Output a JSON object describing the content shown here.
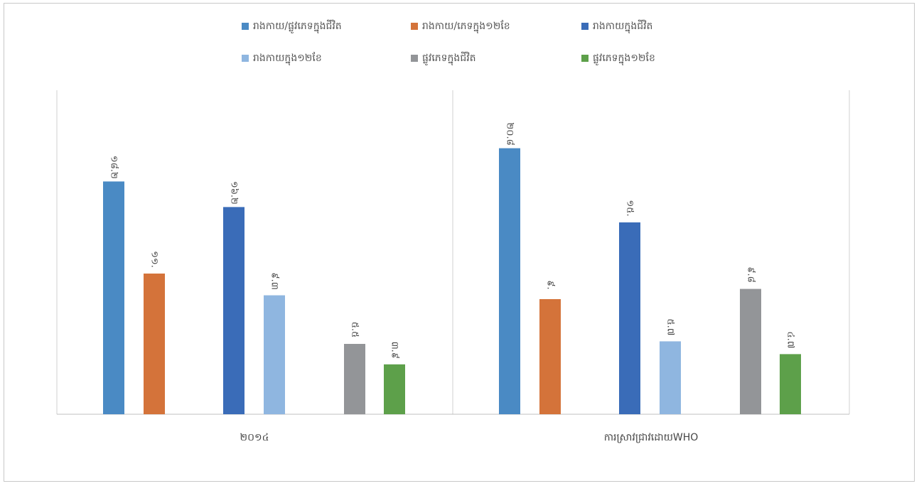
{
  "chart_data": {
    "type": "bar",
    "categories": [
      "២០១៤",
      "ការស្រាវជ្រាវដោយWHO"
    ],
    "series": [
      {
        "name": "រាងកាយ/ផ្លូវភេទក្នុងជីវិត",
        "color": "#4a8ac4",
        "values": [
          18.2,
          20.8
        ],
        "labels": [
          "១៨.២",
          "២០.៨"
        ]
      },
      {
        "name": "រាងកាយ/ភេទក្នុង១២ខែ",
        "color": "#d4733a",
        "values": [
          11.0,
          9.0
        ],
        "labels": [
          "១១.",
          "៩."
        ]
      },
      {
        "name": "រាងកាយក្នុងជីវិត",
        "color": "#3a6cb8",
        "values": [
          16.2,
          15.0
        ],
        "labels": [
          "១៦.២",
          "១៥."
        ]
      },
      {
        "name": "រាងកាយក្នុង១២ខែ",
        "color": "#8fb6e0",
        "values": [
          9.3,
          5.7
        ],
        "labels": [
          "៩.៣",
          "៥.៧"
        ]
      },
      {
        "name": "ផ្លូវភេទក្នុងជីវិត",
        "color": "#939598",
        "values": [
          5.5,
          9.8
        ],
        "labels": [
          "៥.៥",
          "៩.៨"
        ]
      },
      {
        "name": "ផ្លូវភេទក្នុង១២ខែ",
        "color": "#5da04a",
        "values": [
          3.9,
          4.7
        ],
        "labels": [
          "៣.៩",
          "៤.៧"
        ]
      }
    ],
    "ylim": [
      0,
      22
    ],
    "grid": false,
    "legend_position": "top",
    "xlabel": "",
    "ylabel": ""
  }
}
